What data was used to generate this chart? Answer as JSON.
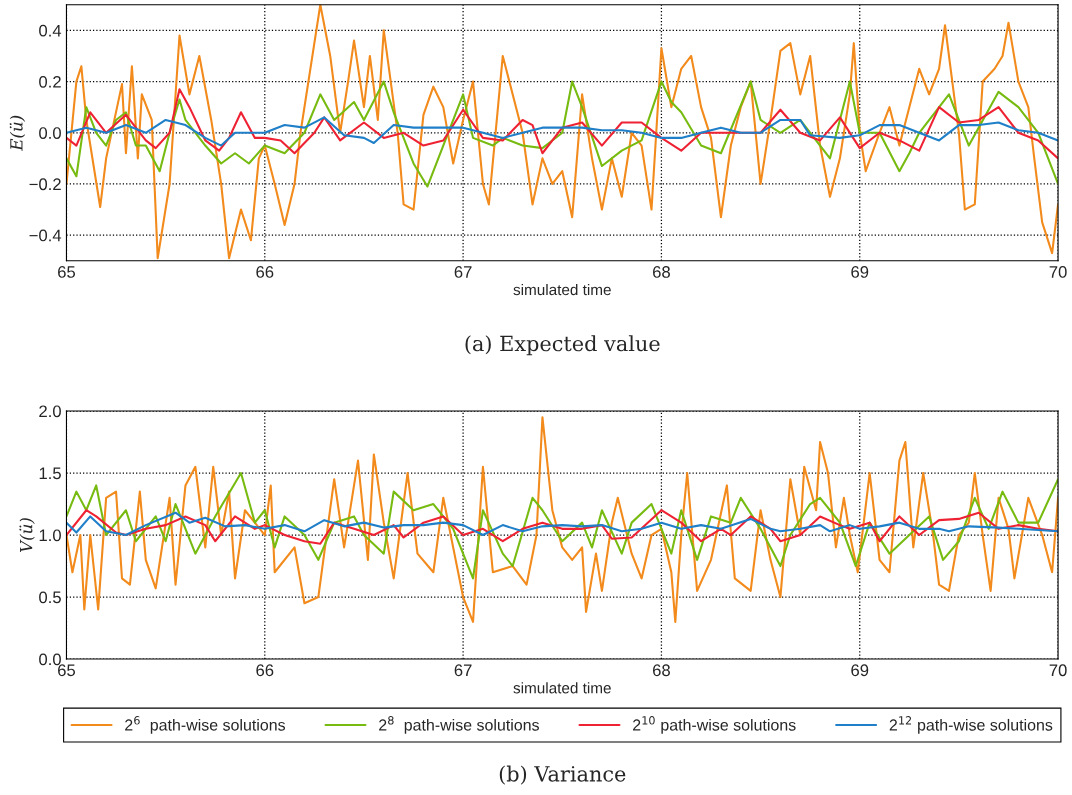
{
  "chart_data": [
    {
      "type": "line",
      "xlabel": "simulated time",
      "ylabel": "E(ü)",
      "xlim": [
        65,
        70
      ],
      "ylim": [
        -0.5,
        0.5
      ],
      "xticks": [
        65,
        66,
        67,
        68,
        69,
        70
      ],
      "yticks": [
        {
          "value": -0.4,
          "label": "−0.4"
        },
        {
          "value": -0.2,
          "label": "−0.2"
        },
        {
          "value": 0,
          "label": "0.0"
        },
        0.2,
        0.4
      ],
      "grid": true,
      "annotations": [
        "(a) Expected value"
      ],
      "series": [
        {
          "color": "#f28a1c",
          "x": [
            65.0,
            65.05,
            65.075,
            65.1,
            65.17,
            65.2,
            65.28,
            65.3,
            65.33,
            65.36,
            65.38,
            65.43,
            65.46,
            65.52,
            65.57,
            65.62,
            65.67,
            65.73,
            65.78,
            65.82,
            65.88,
            65.93,
            65.97,
            66.0,
            66.05,
            66.1,
            66.15,
            66.18,
            66.25,
            66.28,
            66.33,
            66.38,
            66.42,
            66.45,
            66.5,
            66.53,
            66.57,
            66.6,
            66.67,
            66.7,
            66.75,
            66.8,
            66.85,
            66.9,
            66.95,
            67.0,
            67.05,
            67.1,
            67.13,
            67.2,
            67.3,
            67.35,
            67.4,
            67.45,
            67.5,
            67.55,
            67.6,
            67.65,
            67.7,
            67.75,
            67.8,
            67.85,
            67.9,
            67.95,
            68.0,
            68.05,
            68.1,
            68.15,
            68.2,
            68.25,
            68.3,
            68.35,
            68.4,
            68.45,
            68.5,
            68.55,
            68.6,
            68.65,
            68.7,
            68.75,
            68.8,
            68.85,
            68.9,
            68.95,
            68.97,
            69.0,
            69.03,
            69.1,
            69.15,
            69.2,
            69.25,
            69.3,
            69.35,
            69.4,
            69.43,
            69.5,
            69.53,
            69.58,
            69.62,
            69.68,
            69.72,
            69.75,
            69.8,
            69.85,
            69.88,
            69.92,
            69.97,
            70.0
          ],
          "values": [
            -0.2,
            0.2,
            0.26,
            0.05,
            -0.29,
            -0.1,
            0.19,
            -0.08,
            0.26,
            -0.1,
            0.15,
            0.05,
            -0.49,
            -0.2,
            0.38,
            0.15,
            0.3,
            0.05,
            -0.2,
            -0.49,
            -0.3,
            -0.42,
            -0.1,
            -0.05,
            -0.2,
            -0.36,
            -0.2,
            0.0,
            0.35,
            0.5,
            0.3,
            0.0,
            0.2,
            0.36,
            0.1,
            0.3,
            0.05,
            0.4,
            0.0,
            -0.28,
            -0.3,
            0.07,
            0.18,
            0.1,
            -0.12,
            0.05,
            0.2,
            -0.2,
            -0.28,
            0.3,
            0.0,
            -0.28,
            -0.1,
            -0.2,
            -0.15,
            -0.33,
            0.15,
            -0.1,
            -0.3,
            -0.1,
            -0.25,
            0.0,
            -0.05,
            -0.3,
            0.33,
            0.1,
            0.25,
            0.3,
            0.1,
            -0.02,
            -0.33,
            -0.05,
            0.1,
            0.2,
            -0.2,
            0.05,
            0.32,
            0.35,
            0.15,
            0.3,
            -0.05,
            -0.25,
            -0.1,
            0.15,
            0.35,
            0.0,
            -0.15,
            0.0,
            0.1,
            -0.05,
            0.1,
            0.25,
            0.15,
            0.25,
            0.42,
            0.0,
            -0.3,
            -0.28,
            0.2,
            0.25,
            0.3,
            0.43,
            0.2,
            0.1,
            -0.1,
            -0.35,
            -0.47,
            -0.28
          ]
        },
        {
          "color": "#77bb11",
          "x": [
            65.0,
            65.05,
            65.1,
            65.15,
            65.2,
            65.25,
            65.3,
            65.35,
            65.4,
            65.47,
            65.52,
            65.57,
            65.6,
            65.7,
            65.78,
            65.85,
            65.92,
            66.0,
            66.1,
            66.2,
            66.28,
            66.35,
            66.45,
            66.5,
            66.6,
            66.65,
            66.75,
            66.82,
            66.9,
            67.0,
            67.05,
            67.15,
            67.2,
            67.3,
            67.4,
            67.5,
            67.55,
            67.6,
            67.7,
            67.8,
            67.9,
            68.0,
            68.05,
            68.1,
            68.2,
            68.3,
            68.45,
            68.5,
            68.6,
            68.7,
            68.8,
            68.85,
            68.95,
            69.0,
            69.1,
            69.2,
            69.25,
            69.3,
            69.45,
            69.55,
            69.7,
            69.8,
            69.9,
            70.0
          ],
          "values": [
            -0.1,
            -0.17,
            0.1,
            0.0,
            -0.05,
            0.05,
            0.08,
            -0.05,
            -0.05,
            -0.15,
            0.0,
            0.13,
            0.05,
            -0.05,
            -0.12,
            -0.08,
            -0.12,
            -0.05,
            -0.08,
            0.0,
            0.15,
            0.05,
            0.12,
            0.05,
            0.2,
            0.08,
            -0.12,
            -0.21,
            -0.05,
            0.15,
            -0.02,
            -0.05,
            -0.02,
            -0.05,
            -0.06,
            0.0,
            0.2,
            0.1,
            -0.13,
            -0.07,
            -0.03,
            0.2,
            0.12,
            0.08,
            -0.05,
            -0.08,
            0.2,
            0.05,
            0.0,
            0.05,
            -0.05,
            -0.1,
            0.2,
            0.0,
            0.0,
            -0.15,
            -0.08,
            0.0,
            0.15,
            -0.05,
            0.16,
            0.1,
            0.0,
            -0.2
          ]
        },
        {
          "color": "#ee2233",
          "x": [
            65.0,
            65.05,
            65.12,
            65.2,
            65.3,
            65.35,
            65.4,
            65.45,
            65.52,
            65.57,
            65.62,
            65.7,
            65.77,
            65.82,
            65.88,
            65.95,
            66.0,
            66.08,
            66.15,
            66.25,
            66.3,
            66.38,
            66.5,
            66.6,
            66.7,
            66.8,
            66.9,
            67.0,
            67.1,
            67.2,
            67.3,
            67.35,
            67.4,
            67.5,
            67.6,
            67.7,
            67.8,
            67.9,
            68.0,
            68.1,
            68.2,
            68.3,
            68.4,
            68.5,
            68.6,
            68.7,
            68.8,
            68.9,
            69.0,
            69.1,
            69.2,
            69.3,
            69.4,
            69.5,
            69.6,
            69.7,
            69.8,
            69.9,
            70.0
          ],
          "values": [
            -0.02,
            -0.05,
            0.08,
            0.0,
            0.07,
            0.02,
            -0.03,
            -0.06,
            0.0,
            0.17,
            0.1,
            -0.03,
            -0.07,
            -0.02,
            0.08,
            -0.02,
            -0.02,
            -0.03,
            -0.08,
            0.0,
            0.06,
            -0.03,
            0.04,
            -0.02,
            0.0,
            -0.05,
            -0.03,
            0.09,
            -0.02,
            -0.03,
            0.05,
            0.03,
            -0.08,
            0.02,
            0.04,
            -0.05,
            0.04,
            0.04,
            -0.02,
            -0.07,
            0.0,
            0.0,
            0.0,
            0.0,
            0.09,
            0.0,
            -0.03,
            0.06,
            -0.06,
            0.0,
            -0.03,
            -0.07,
            0.1,
            0.04,
            0.05,
            0.1,
            0.0,
            -0.03,
            -0.1
          ]
        },
        {
          "color": "#1f7fc8",
          "x": [
            65.0,
            65.1,
            65.2,
            65.3,
            65.4,
            65.5,
            65.6,
            65.7,
            65.78,
            65.85,
            65.9,
            66.0,
            66.1,
            66.2,
            66.3,
            66.4,
            66.5,
            66.55,
            66.65,
            66.75,
            66.9,
            67.0,
            67.1,
            67.2,
            67.3,
            67.4,
            67.5,
            67.6,
            67.7,
            67.8,
            67.9,
            68.0,
            68.1,
            68.2,
            68.3,
            68.4,
            68.5,
            68.6,
            68.7,
            68.75,
            68.9,
            69.0,
            69.1,
            69.2,
            69.3,
            69.4,
            69.5,
            69.6,
            69.7,
            69.8,
            69.9,
            70.0
          ],
          "values": [
            0.0,
            0.02,
            0.0,
            0.03,
            0.0,
            0.05,
            0.03,
            -0.02,
            -0.05,
            0.0,
            0.0,
            0.0,
            0.03,
            0.02,
            0.06,
            -0.01,
            -0.02,
            -0.04,
            0.03,
            0.02,
            0.02,
            0.02,
            0.0,
            -0.02,
            0.0,
            0.02,
            0.02,
            0.02,
            0.01,
            0.01,
            0.0,
            -0.02,
            -0.02,
            0.0,
            0.02,
            0.0,
            0.0,
            0.05,
            0.05,
            -0.01,
            -0.02,
            -0.01,
            0.03,
            0.03,
            0.0,
            -0.03,
            0.03,
            0.03,
            0.04,
            0.01,
            0.0,
            -0.03
          ]
        }
      ]
    },
    {
      "type": "line",
      "xlabel": "simulated time",
      "ylabel": "V(ü)",
      "xlim": [
        65,
        70
      ],
      "ylim": [
        0,
        2
      ],
      "xticks": [
        65,
        66,
        67,
        68,
        69,
        70
      ],
      "yticks": [
        {
          "value": 0,
          "label": "0.0"
        },
        0.5,
        {
          "value": 1,
          "label": "1.0"
        },
        1.5,
        {
          "value": 2,
          "label": "2.0"
        }
      ],
      "grid": true,
      "legend": "bottom",
      "annotations": [
        "(b) Variance"
      ],
      "series": [
        {
          "name": "2$^{6}$  path-wise solutions",
          "color": "#f28a1c",
          "x": [
            65.0,
            65.03,
            65.07,
            65.09,
            65.12,
            65.16,
            65.2,
            65.25,
            65.28,
            65.32,
            65.37,
            65.4,
            65.45,
            65.52,
            65.55,
            65.6,
            65.65,
            65.7,
            65.74,
            65.78,
            65.82,
            65.85,
            65.9,
            66.0,
            66.03,
            66.05,
            66.15,
            66.2,
            66.27,
            66.35,
            66.4,
            66.47,
            66.52,
            66.55,
            66.6,
            66.65,
            66.72,
            66.77,
            66.85,
            66.9,
            66.95,
            67.0,
            67.05,
            67.1,
            67.15,
            67.25,
            67.32,
            67.37,
            67.4,
            67.45,
            67.5,
            67.55,
            67.6,
            67.62,
            67.67,
            67.7,
            67.75,
            67.78,
            67.85,
            67.9,
            67.95,
            68.0,
            68.05,
            68.07,
            68.1,
            68.13,
            68.18,
            68.25,
            68.33,
            68.37,
            68.45,
            68.5,
            68.55,
            68.6,
            68.65,
            68.7,
            68.72,
            68.78,
            68.8,
            68.84,
            68.88,
            68.92,
            68.95,
            68.99,
            69.05,
            69.1,
            69.15,
            69.2,
            69.23,
            69.27,
            69.32,
            69.37,
            69.4,
            69.45,
            69.5,
            69.55,
            69.58,
            69.62,
            69.66,
            69.7,
            69.75,
            69.78,
            69.85,
            69.92,
            69.97,
            70.0
          ],
          "values": [
            1.0,
            0.7,
            1.0,
            0.4,
            1.0,
            0.4,
            1.3,
            1.35,
            0.65,
            0.6,
            1.35,
            0.8,
            0.57,
            1.3,
            0.6,
            1.4,
            1.55,
            0.9,
            1.55,
            1.0,
            1.35,
            0.65,
            1.2,
            1.0,
            1.4,
            0.7,
            0.9,
            0.45,
            0.5,
            1.45,
            0.9,
            1.6,
            0.8,
            1.65,
            1.1,
            0.65,
            1.5,
            0.85,
            0.7,
            1.3,
            0.9,
            0.5,
            0.3,
            1.55,
            0.7,
            0.75,
            0.6,
            1.0,
            1.95,
            1.2,
            0.9,
            0.8,
            0.9,
            0.38,
            0.85,
            0.55,
            1.1,
            1.3,
            0.85,
            0.65,
            1.0,
            1.05,
            0.7,
            0.3,
            1.0,
            1.5,
            0.55,
            0.8,
            1.4,
            0.65,
            0.55,
            1.2,
            0.8,
            0.5,
            1.45,
            1.0,
            1.55,
            1.2,
            1.75,
            1.5,
            0.9,
            1.3,
            1.0,
            0.7,
            1.5,
            0.8,
            0.7,
            1.6,
            1.75,
            0.9,
            1.5,
            1.0,
            0.6,
            0.55,
            1.0,
            1.1,
            1.5,
            1.0,
            0.55,
            1.3,
            1.05,
            0.65,
            1.3,
            1.0,
            0.7,
            1.3
          ]
        },
        {
          "name": "2$^{8}$  path-wise solutions",
          "color": "#77bb11",
          "x": [
            65.0,
            65.05,
            65.1,
            65.15,
            65.2,
            65.3,
            65.35,
            65.45,
            65.5,
            65.55,
            65.65,
            65.75,
            65.88,
            65.95,
            66.0,
            66.05,
            66.1,
            66.2,
            66.27,
            66.35,
            66.45,
            66.5,
            66.6,
            66.65,
            66.75,
            66.85,
            66.95,
            67.05,
            67.1,
            67.2,
            67.25,
            67.35,
            67.4,
            67.5,
            67.6,
            67.65,
            67.7,
            67.8,
            67.85,
            67.95,
            68.05,
            68.1,
            68.18,
            68.25,
            68.35,
            68.4,
            68.5,
            68.6,
            68.65,
            68.75,
            68.8,
            68.85,
            68.9,
            68.98,
            69.05,
            69.15,
            69.25,
            69.35,
            69.42,
            69.5,
            69.58,
            69.65,
            69.72,
            69.8,
            69.9,
            70.0
          ],
          "values": [
            1.15,
            1.35,
            1.2,
            1.4,
            1.0,
            1.2,
            0.95,
            1.15,
            0.95,
            1.25,
            0.85,
            1.15,
            1.5,
            1.1,
            1.2,
            0.9,
            1.15,
            1.0,
            0.8,
            1.1,
            1.15,
            1.0,
            0.85,
            1.35,
            1.2,
            1.25,
            1.05,
            0.65,
            1.2,
            0.85,
            0.75,
            1.3,
            1.2,
            0.95,
            1.1,
            0.9,
            1.2,
            0.85,
            1.1,
            1.25,
            0.85,
            1.2,
            0.8,
            1.15,
            1.1,
            1.3,
            1.05,
            0.75,
            1.0,
            1.25,
            1.3,
            1.2,
            1.1,
            0.75,
            1.1,
            0.85,
            1.0,
            1.15,
            0.8,
            0.95,
            1.3,
            1.05,
            1.35,
            1.1,
            1.1,
            1.45
          ]
        },
        {
          "name": "2$^{10}$ path-wise solutions",
          "color": "#ee2233",
          "x": [
            65.0,
            65.1,
            65.15,
            65.25,
            65.3,
            65.4,
            65.5,
            65.6,
            65.7,
            65.75,
            65.85,
            65.95,
            66.0,
            66.1,
            66.2,
            66.28,
            66.35,
            66.45,
            66.55,
            66.65,
            66.7,
            66.8,
            66.9,
            67.0,
            67.1,
            67.2,
            67.3,
            67.4,
            67.5,
            67.6,
            67.7,
            67.75,
            67.85,
            68.0,
            68.1,
            68.2,
            68.3,
            68.35,
            68.45,
            68.55,
            68.6,
            68.7,
            68.8,
            68.9,
            68.95,
            69.05,
            69.1,
            69.2,
            69.3,
            69.4,
            69.5,
            69.6,
            69.7,
            69.8,
            69.9,
            70.0
          ],
          "values": [
            1.0,
            1.2,
            1.15,
            1.02,
            1.0,
            1.05,
            1.08,
            1.15,
            1.08,
            0.95,
            1.15,
            1.05,
            1.08,
            1.0,
            0.95,
            0.93,
            1.1,
            1.05,
            1.0,
            1.08,
            0.98,
            1.1,
            1.15,
            1.0,
            1.05,
            0.95,
            1.05,
            1.1,
            1.05,
            1.05,
            1.08,
            0.97,
            0.98,
            1.2,
            1.1,
            0.95,
            1.05,
            1.0,
            1.15,
            1.05,
            0.95,
            1.0,
            1.15,
            1.08,
            1.05,
            1.1,
            0.95,
            1.15,
            1.0,
            1.12,
            1.13,
            1.18,
            1.05,
            1.08,
            1.05,
            1.03
          ]
        },
        {
          "name": "2$^{12}$ path-wise solutions",
          "color": "#1f7fc8",
          "x": [
            65.0,
            65.05,
            65.12,
            65.2,
            65.3,
            65.4,
            65.55,
            65.62,
            65.7,
            65.8,
            65.9,
            66.0,
            66.1,
            66.2,
            66.3,
            66.4,
            66.5,
            66.6,
            66.7,
            66.8,
            66.9,
            67.0,
            67.1,
            67.2,
            67.3,
            67.4,
            67.5,
            67.6,
            67.7,
            67.8,
            67.9,
            68.0,
            68.1,
            68.2,
            68.3,
            68.45,
            68.55,
            68.6,
            68.7,
            68.8,
            68.85,
            68.95,
            69.0,
            69.1,
            69.2,
            69.3,
            69.4,
            69.45,
            69.55,
            69.7,
            69.8,
            69.9,
            70.0
          ],
          "values": [
            1.1,
            1.02,
            1.15,
            1.03,
            1.0,
            1.08,
            1.18,
            1.1,
            1.14,
            1.07,
            1.08,
            1.05,
            1.08,
            1.03,
            1.12,
            1.07,
            1.1,
            1.06,
            1.08,
            1.08,
            1.1,
            1.08,
            1.0,
            1.08,
            1.03,
            1.07,
            1.08,
            1.07,
            1.08,
            1.03,
            1.05,
            1.1,
            1.05,
            1.08,
            1.05,
            1.13,
            1.05,
            1.03,
            1.05,
            1.08,
            1.03,
            1.08,
            1.05,
            1.07,
            1.1,
            1.05,
            1.05,
            1.03,
            1.07,
            1.06,
            1.05,
            1.04,
            1.03
          ]
        }
      ]
    }
  ]
}
